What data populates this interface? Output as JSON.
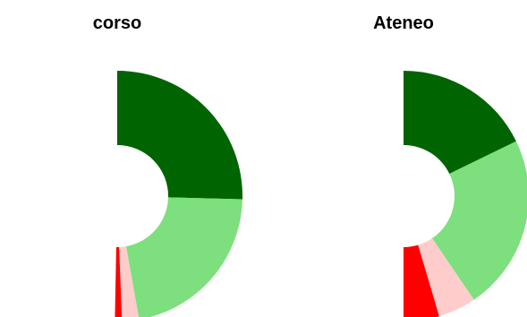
{
  "chart_data": [
    {
      "type": "pie",
      "variant": "half-donut",
      "title": "corso",
      "start": "top",
      "direction": "clockwise",
      "slices": [
        {
          "value": 25.4,
          "color": "#006400"
        },
        {
          "value": 21.8,
          "color": "#7ddf7d"
        },
        {
          "value": 2.2,
          "color": "#ffcccc"
        },
        {
          "value": 0.9,
          "color": "#ff0000"
        }
      ]
    },
    {
      "type": "pie",
      "variant": "half-donut",
      "title": "Ateneo",
      "start": "top",
      "direction": "clockwise",
      "slices": [
        {
          "value": 17.8,
          "color": "#006400"
        },
        {
          "value": 22.7,
          "color": "#7ddf7d"
        },
        {
          "value": 4.9,
          "color": "#ffcccc"
        },
        {
          "value": 4.6,
          "color": "#ff0000"
        }
      ]
    }
  ]
}
